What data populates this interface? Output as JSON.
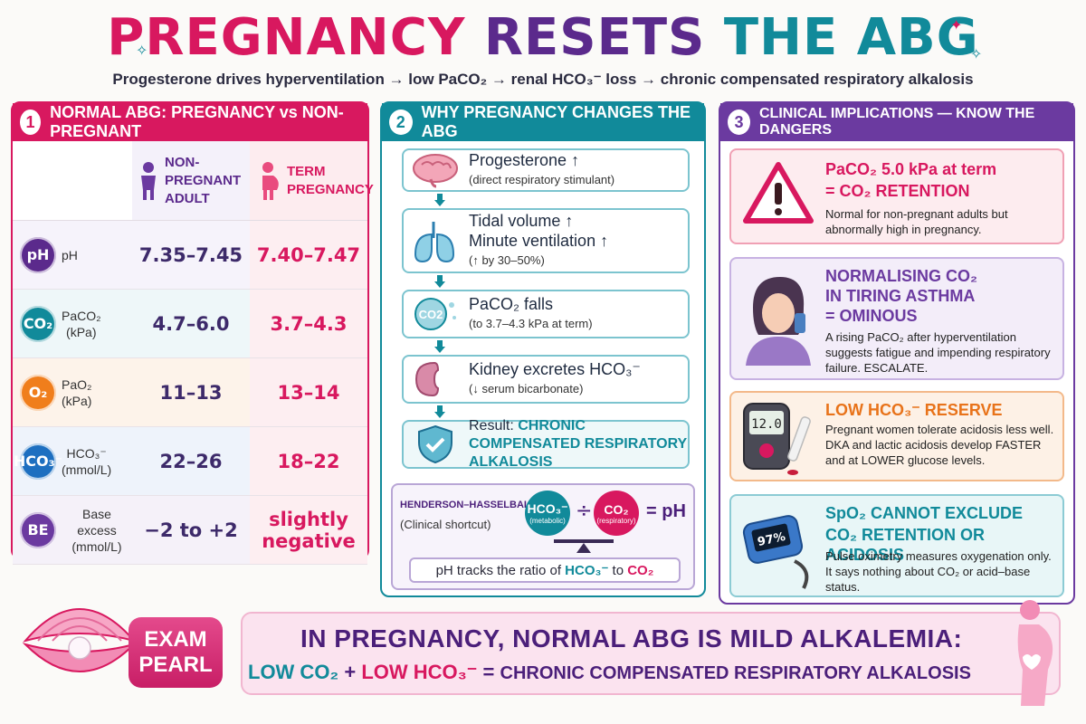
{
  "title": {
    "part1": "PREGNANCY",
    "part2": "RESETS",
    "part3": "THE ABG"
  },
  "subtitle": "Progesterone drives hyperventilation → low PaCO₂ → renal HCO₃⁻ loss → chronic compensated respiratory alkalosis",
  "panel1": {
    "number": "1",
    "heading": "NORMAL ABG: PREGNANCY vs NON-PREGNANT",
    "col_nonpregnant": "NON-PREGNANT ADULT",
    "col_term": "TERM PREGNANCY",
    "rows": [
      {
        "icon": "pH",
        "label": "pH",
        "unit": "",
        "nonpregnant": "7.35–7.45",
        "term": "7.40–7.47",
        "color": "#5b2a8c"
      },
      {
        "icon": "CO₂",
        "label": "PaCO₂",
        "unit": "(kPa)",
        "nonpregnant": "4.7–6.0",
        "term": "3.7–4.3",
        "color": "#118a9a"
      },
      {
        "icon": "O₂",
        "label": "PaO₂",
        "unit": "(kPa)",
        "nonpregnant": "11–13",
        "term": "13–14",
        "color": "#f07e1c"
      },
      {
        "icon": "HCO₃⁻",
        "label": "HCO₃⁻",
        "unit": "(mmol/L)",
        "nonpregnant": "22–26",
        "term": "18–22",
        "color": "#1d6fc0"
      },
      {
        "icon": "BE",
        "label": "Base excess",
        "unit": "(mmol/L)",
        "nonpregnant": "−2 to +2",
        "term": "slightly negative",
        "color": "#6b3aa0"
      }
    ]
  },
  "panel2": {
    "number": "2",
    "heading": "WHY PREGNANCY CHANGES THE ABG",
    "steps": [
      {
        "main": "Progesterone ↑",
        "sub": "(direct respiratory stimulant)"
      },
      {
        "main": "Tidal volume ↑",
        "main2": "Minute ventilation ↑",
        "sub": "(↑ by 30–50%)"
      },
      {
        "main": "PaCO₂ falls",
        "sub": "(to 3.7–4.3 kPa at term)"
      },
      {
        "main": "Kidney excretes HCO₃⁻",
        "sub": "(↓ serum bicarbonate)"
      }
    ],
    "result_prefix": "Result:",
    "result_text": "CHRONIC COMPENSATED RESPIRATORY ALKALOSIS",
    "hh_title": "HENDERSON–HASSELBALCH",
    "hh_sub": "(Clinical shortcut)",
    "hh_num": "HCO₃⁻",
    "hh_num_sub": "(metabolic)",
    "hh_op": "÷",
    "hh_den": "CO₂",
    "hh_den_sub": "(respiratory)",
    "hh_eq": "= pH",
    "hh_ratio_prefix": "pH tracks the ratio of",
    "hh_ratio_a": "HCO₃⁻",
    "hh_ratio_mid": "to",
    "hh_ratio_b": "CO₂"
  },
  "panel3": {
    "number": "3",
    "heading": "CLINICAL IMPLICATIONS — KNOW THE DANGERS",
    "cards": [
      {
        "title1": "PaCO₂ 5.0 kPa at term",
        "title2": "= CO₂ RETENTION",
        "body": "Normal for non-pregnant adults but abnormally high in pregnancy.",
        "color": "#d8185f",
        "bg": "#fdecef"
      },
      {
        "title1": "NORMALISING CO₂",
        "title2": "IN TIRING ASTHMA",
        "title3": "= OMINOUS",
        "body": "A rising PaCO₂ after hyperventilation suggests fatigue and impending respiratory failure. ESCALATE.",
        "color": "#6b3aa0",
        "bg": "#f3edf9"
      },
      {
        "title1": "LOW HCO₃⁻ RESERVE",
        "body": "Pregnant women tolerate acidosis less well. DKA and lactic acidosis develop FASTER and at LOWER glucose levels.",
        "color": "#e8731a",
        "bg": "#fdf1e6",
        "meter": "12.0"
      },
      {
        "title1": "SpO₂ CANNOT EXCLUDE",
        "title2": "CO₂ RETENTION OR ACIDOSIS",
        "body": "Pulse oximetry measures oxygenation only. It says nothing about CO₂ or acid–base status.",
        "color": "#118a9a",
        "bg": "#e8f6f7",
        "meter": "97%"
      }
    ]
  },
  "pearl": {
    "tag_line1": "EXAM",
    "tag_line2": "PEARL",
    "headline": "IN PREGNANCY, NORMAL ABG IS MILD ALKALEMIA:",
    "eq_a": "LOW CO₂",
    "eq_plus": "+",
    "eq_b": "LOW HCO₃⁻",
    "eq_equals": "=",
    "eq_result": "CHRONIC COMPENSATED RESPIRATORY ALKALOSIS"
  },
  "colors": {
    "pink": "#d8185f",
    "purple": "#5b2a8c",
    "teal": "#118a9a",
    "orange": "#e8731a"
  }
}
